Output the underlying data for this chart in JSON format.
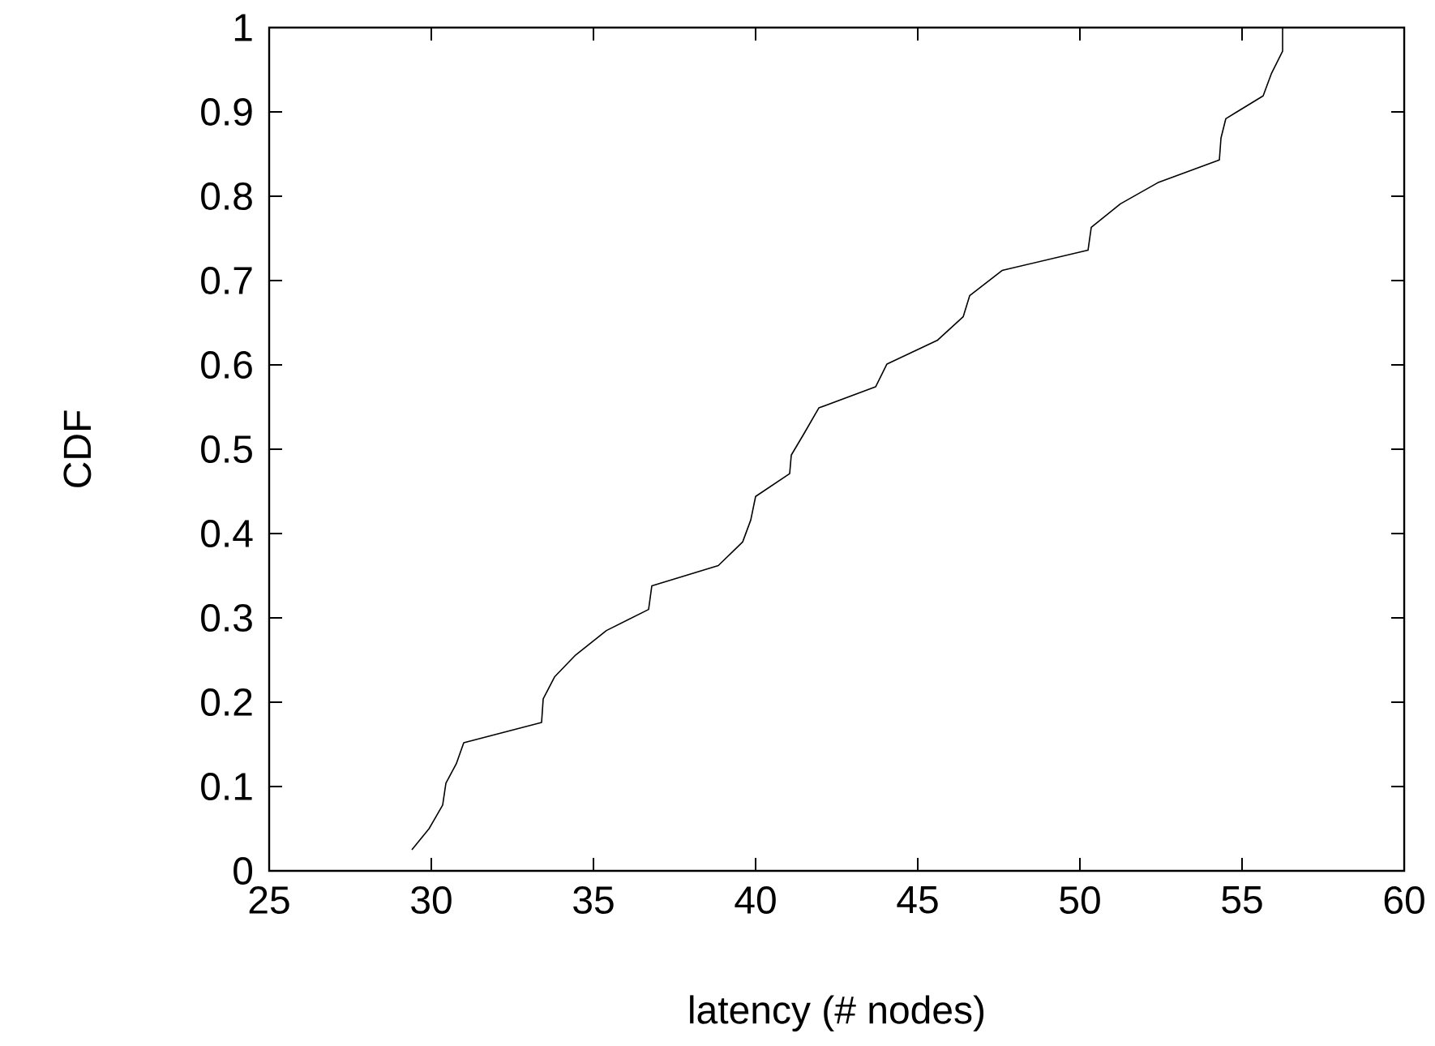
{
  "chart_data": {
    "type": "line",
    "xlabel": "latency (# nodes)",
    "ylabel": "CDF",
    "xlim": [
      25,
      60
    ],
    "ylim": [
      0,
      1
    ],
    "xticks": [
      25,
      30,
      35,
      40,
      45,
      50,
      55,
      60
    ],
    "yticks": [
      0,
      0.1,
      0.2,
      0.3,
      0.4,
      0.5,
      0.6,
      0.7,
      0.8,
      0.9,
      1
    ],
    "grid": false,
    "marker": "none",
    "line_style": "solid",
    "series": [
      {
        "color": "#000000",
        "x": [
          29.4,
          29.93,
          30.35,
          30.45,
          30.77,
          31.0,
          33.4,
          33.45,
          33.8,
          34.45,
          35.4,
          36.7,
          36.8,
          38.85,
          39.6,
          39.85,
          40.0,
          41.05,
          41.1,
          41.5,
          41.95,
          43.7,
          44.05,
          45.6,
          46.4,
          46.6,
          47.6,
          50.25,
          50.35,
          51.25,
          52.4,
          54.3,
          54.35,
          54.5,
          55.65,
          55.9,
          56.25,
          56.25
        ],
        "values": [
          0.025,
          0.05,
          0.078,
          0.104,
          0.127,
          0.152,
          0.176,
          0.204,
          0.23,
          0.256,
          0.285,
          0.31,
          0.338,
          0.362,
          0.39,
          0.416,
          0.444,
          0.471,
          0.493,
          0.519,
          0.549,
          0.574,
          0.601,
          0.629,
          0.657,
          0.682,
          0.712,
          0.736,
          0.763,
          0.791,
          0.816,
          0.843,
          0.869,
          0.892,
          0.919,
          0.945,
          0.972,
          1.0
        ]
      }
    ]
  }
}
